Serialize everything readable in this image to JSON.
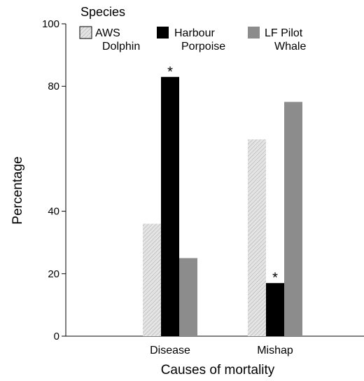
{
  "chart_data": {
    "type": "bar",
    "categories": [
      "Disease",
      "Mishap"
    ],
    "series": [
      {
        "name": "AWS Dolphin",
        "values": [
          36,
          63
        ]
      },
      {
        "name": "Harbour Porpoise",
        "values": [
          83,
          17
        ]
      },
      {
        "name": "LF Pilot Whale",
        "values": [
          25,
          75
        ]
      }
    ],
    "series_colors": [
      "#d8d8d8",
      "#000000",
      "#8c8c8c"
    ],
    "significance_markers": [
      {
        "series": 1,
        "category": 0,
        "symbol": "*"
      },
      {
        "series": 1,
        "category": 1,
        "symbol": "*"
      }
    ],
    "legend_title": "Species",
    "legend": [
      {
        "line1": "AWS",
        "line2": "Dolphin"
      },
      {
        "line1": "Harbour",
        "line2": "Porpoise"
      },
      {
        "line1": "LF Pilot",
        "line2": "Whale"
      }
    ],
    "xlabel": "Causes of mortality",
    "ylabel": "Percentage",
    "yticks": [
      0,
      20,
      40,
      80,
      100
    ],
    "ylim": [
      0,
      100
    ],
    "grid": false,
    "legend_position": "top"
  }
}
